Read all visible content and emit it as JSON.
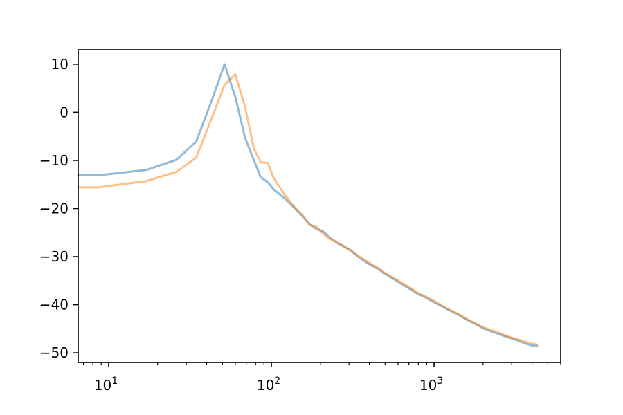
{
  "chart_data": {
    "type": "line",
    "title": "",
    "xlabel": "",
    "ylabel": "",
    "x_scale": "log",
    "xlim": [
      6.5,
      6000
    ],
    "ylim": [
      -52,
      13
    ],
    "grid": false,
    "legend": "none",
    "x_ticks": [
      {
        "value": 10,
        "base": "10",
        "exp": "1"
      },
      {
        "value": 100,
        "base": "10",
        "exp": "2"
      },
      {
        "value": 1000,
        "base": "10",
        "exp": "3"
      }
    ],
    "y_ticks": [
      {
        "value": 10,
        "label": "10"
      },
      {
        "value": 0,
        "label": "0"
      },
      {
        "value": -10,
        "label": "−10"
      },
      {
        "value": -20,
        "label": "−20"
      },
      {
        "value": -30,
        "label": "−30"
      },
      {
        "value": -40,
        "label": "−40"
      },
      {
        "value": -50,
        "label": "−50"
      }
    ],
    "series": [
      {
        "color": "#1f77b4",
        "opacity": 0.5,
        "points": [
          [
            6.5,
            -13.1
          ],
          [
            8.6,
            -13.1
          ],
          [
            17,
            -12.0
          ],
          [
            26,
            -9.9
          ],
          [
            34.5,
            -6.1
          ],
          [
            43,
            2.5
          ],
          [
            51.5,
            10.0
          ],
          [
            60,
            3.2
          ],
          [
            69,
            -5.4
          ],
          [
            86,
            -13.5
          ],
          [
            95,
            -14.5
          ],
          [
            103,
            -16.0
          ],
          [
            120,
            -17.8
          ],
          [
            138,
            -19.8
          ],
          [
            155,
            -21.6
          ],
          [
            172,
            -23.3
          ],
          [
            190,
            -24.3
          ],
          [
            207,
            -24.7
          ],
          [
            225,
            -25.8
          ],
          [
            250,
            -27.0
          ],
          [
            300,
            -28.5
          ],
          [
            350,
            -30.3
          ],
          [
            400,
            -31.6
          ],
          [
            450,
            -32.5
          ],
          [
            500,
            -33.6
          ],
          [
            600,
            -35.2
          ],
          [
            700,
            -36.6
          ],
          [
            800,
            -37.8
          ],
          [
            900,
            -38.6
          ],
          [
            1000,
            -39.5
          ],
          [
            1200,
            -40.9
          ],
          [
            1400,
            -42.0
          ],
          [
            1600,
            -43.2
          ],
          [
            1800,
            -44.0
          ],
          [
            2000,
            -44.9
          ],
          [
            2400,
            -45.9
          ],
          [
            2800,
            -46.7
          ],
          [
            3200,
            -47.3
          ],
          [
            3600,
            -48.0
          ],
          [
            4000,
            -48.5
          ],
          [
            4300,
            -48.6
          ]
        ]
      },
      {
        "color": "#ff7f0e",
        "opacity": 0.5,
        "points": [
          [
            6.5,
            -15.6
          ],
          [
            8.6,
            -15.6
          ],
          [
            17,
            -14.3
          ],
          [
            26,
            -12.4
          ],
          [
            34.5,
            -9.4
          ],
          [
            43,
            -1.2
          ],
          [
            51.5,
            5.7
          ],
          [
            60,
            7.9
          ],
          [
            69,
            1.0
          ],
          [
            78,
            -7.5
          ],
          [
            86,
            -10.4
          ],
          [
            95,
            -10.5
          ],
          [
            103,
            -13.6
          ],
          [
            120,
            -17.0
          ],
          [
            138,
            -19.6
          ],
          [
            155,
            -21.3
          ],
          [
            172,
            -23.4
          ],
          [
            190,
            -23.8
          ],
          [
            207,
            -25.2
          ],
          [
            225,
            -26.2
          ],
          [
            250,
            -26.9
          ],
          [
            300,
            -28.4
          ],
          [
            350,
            -30.1
          ],
          [
            400,
            -31.3
          ],
          [
            450,
            -32.3
          ],
          [
            500,
            -33.4
          ],
          [
            600,
            -35.0
          ],
          [
            700,
            -36.3
          ],
          [
            800,
            -37.6
          ],
          [
            900,
            -38.4
          ],
          [
            1000,
            -39.2
          ],
          [
            1200,
            -40.8
          ],
          [
            1400,
            -41.9
          ],
          [
            1600,
            -43.0
          ],
          [
            1800,
            -43.9
          ],
          [
            2000,
            -44.7
          ],
          [
            2400,
            -45.6
          ],
          [
            2800,
            -46.5
          ],
          [
            3200,
            -47.1
          ],
          [
            3600,
            -47.7
          ],
          [
            4000,
            -48.1
          ],
          [
            4300,
            -48.3
          ]
        ]
      }
    ]
  }
}
